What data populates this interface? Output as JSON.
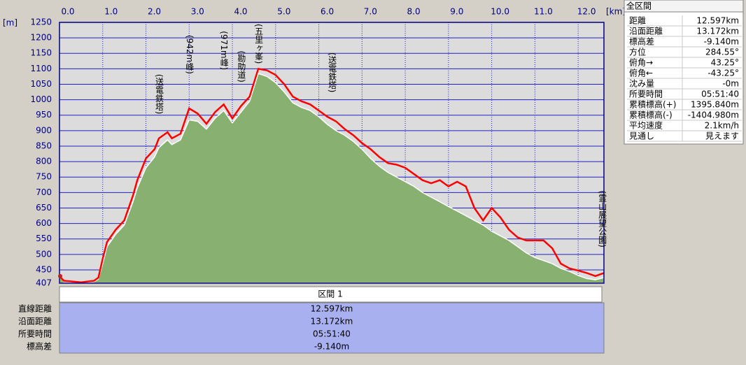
{
  "chart_data": {
    "type": "line",
    "y_unit": "[m]",
    "x_unit": "[km]",
    "x": [
      0,
      0.1,
      0.5,
      0.8,
      0.9,
      1.0,
      1.1,
      1.3,
      1.5,
      1.7,
      1.8,
      2.0,
      2.2,
      2.3,
      2.5,
      2.6,
      2.8,
      3.0,
      3.2,
      3.4,
      3.6,
      3.8,
      4.0,
      4.2,
      4.4,
      4.6,
      4.8,
      5.0,
      5.2,
      5.4,
      5.6,
      5.8,
      6.0,
      6.2,
      6.4,
      6.6,
      6.8,
      7.0,
      7.2,
      7.4,
      7.6,
      7.8,
      8.0,
      8.2,
      8.4,
      8.6,
      8.8,
      9.0,
      9.2,
      9.4,
      9.6,
      9.8,
      10.0,
      10.2,
      10.4,
      10.6,
      10.8,
      11.0,
      11.2,
      11.4,
      11.6,
      11.8,
      12.0,
      12.2,
      12.4,
      12.597
    ],
    "series": [
      {
        "color": "#88b070",
        "fill": true,
        "values": [
          430,
          412,
          408,
          412,
          420,
          470,
          525,
          565,
          595,
          670,
          715,
          780,
          815,
          845,
          870,
          855,
          870,
          935,
          930,
          905,
          940,
          965,
          925,
          960,
          995,
          1085,
          1075,
          1055,
          1025,
          990,
          975,
          965,
          945,
          920,
          900,
          885,
          865,
          840,
          810,
          785,
          765,
          750,
          735,
          720,
          700,
          685,
          670,
          655,
          640,
          625,
          610,
          595,
          575,
          560,
          545,
          525,
          505,
          490,
          480,
          470,
          455,
          445,
          432,
          422,
          418,
          425
        ]
      },
      {
        "color": "#ff0000",
        "fill": false,
        "values": [
          430,
          415,
          410,
          415,
          425,
          486,
          540,
          580,
          610,
          690,
          740,
          810,
          840,
          875,
          895,
          875,
          890,
          972,
          955,
          922,
          960,
          985,
          940,
          980,
          1010,
          1100,
          1095,
          1080,
          1050,
          1010,
          995,
          985,
          965,
          945,
          930,
          905,
          885,
          860,
          840,
          815,
          795,
          790,
          780,
          760,
          740,
          730,
          740,
          720,
          735,
          720,
          650,
          610,
          650,
          620,
          580,
          555,
          545,
          545,
          545,
          520,
          470,
          455,
          448,
          440,
          430,
          440
        ]
      }
    ],
    "annotations": [
      {
        "text": "(送電鉄塔)",
        "x": 2.3
      },
      {
        "text": "(942m峰)",
        "x": 3.0
      },
      {
        "text": "(971m峰)",
        "x": 3.8
      },
      {
        "text": "(勘助道)",
        "x": 4.2
      },
      {
        "text": "(五里ヶ峯)",
        "x": 4.6
      },
      {
        "text": "(送電鉄塔)",
        "x": 6.3
      },
      {
        "text": "(霊山展望公園)",
        "x": 12.55
      }
    ],
    "xlim": [
      0,
      12.597
    ],
    "ylim": [
      407,
      1250
    ],
    "xticks": [
      {
        "value": 0,
        "label": "0.0"
      },
      {
        "value": 1,
        "label": "1.0"
      },
      {
        "value": 2,
        "label": "2.0"
      },
      {
        "value": 3,
        "label": "3.0"
      },
      {
        "value": 4,
        "label": "4.0"
      },
      {
        "value": 5,
        "label": "5.0"
      },
      {
        "value": 6,
        "label": "6.0"
      },
      {
        "value": 7,
        "label": "7.0"
      },
      {
        "value": 8,
        "label": "8.0"
      },
      {
        "value": 9,
        "label": "9.0"
      },
      {
        "value": 10,
        "label": "10.0"
      },
      {
        "value": 11,
        "label": "11.0"
      },
      {
        "value": 12,
        "label": "12.0"
      }
    ],
    "yticks": [
      407,
      450,
      500,
      550,
      600,
      650,
      700,
      750,
      800,
      850,
      900,
      950,
      1000,
      1050,
      1100,
      1150,
      1200,
      1250
    ],
    "grid": true
  },
  "info_panel": {
    "title": "全区間",
    "rows": [
      [
        "距離",
        "12.597km"
      ],
      [
        "沿面距離",
        "13.172km"
      ],
      [
        "標高差",
        "-9.140m"
      ],
      [
        "方位",
        "284.55°"
      ],
      [
        "俯角→",
        "43.25°"
      ],
      [
        "俯角←",
        "-43.25°"
      ],
      [
        "沈み量",
        "-0m"
      ],
      [
        "所要時間",
        "05:51:40"
      ],
      [
        "累積標高(+)",
        "1395.840m"
      ],
      [
        "累積標高(-)",
        "-1404.980m"
      ],
      [
        "平均速度",
        "2.1km/h"
      ],
      [
        "見通し",
        "見えます"
      ]
    ]
  },
  "section_table": {
    "header": "区間 1",
    "rows": [
      [
        "直線距離",
        "12.597km"
      ],
      [
        "沿面距離",
        "13.172km"
      ],
      [
        "所要時間",
        "05:51:40"
      ],
      [
        "標高差",
        "-9.140m"
      ]
    ]
  }
}
